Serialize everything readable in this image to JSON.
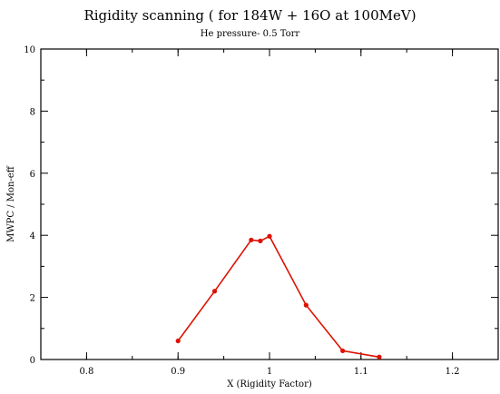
{
  "chart_data": {
    "type": "line",
    "title": "Rigidity scanning ( for 184W + 16O at 100MeV)",
    "subtitle": "He pressure- 0.5 Torr",
    "xlabel": "X (Rigidity Factor)",
    "ylabel": "MWPC / Mon-eff",
    "xlim": [
      0.75,
      1.25
    ],
    "ylim": [
      0,
      10
    ],
    "xticks": [
      0.8,
      0.9,
      1,
      1.1,
      1.2
    ],
    "xtick_labels": [
      "0.8",
      "0.9",
      "1",
      "1.1",
      "1.2"
    ],
    "yticks": [
      0,
      2,
      4,
      6,
      8,
      10
    ],
    "ytick_labels": [
      "0",
      "2",
      "4",
      "6",
      "8",
      "10"
    ],
    "grid": false,
    "series": [
      {
        "x": [
          0.9,
          0.94,
          0.98,
          0.99,
          1.0,
          1.04,
          1.08,
          1.12
        ],
        "y": [
          0.6,
          2.2,
          3.85,
          3.82,
          3.97,
          1.75,
          0.28,
          0.08
        ],
        "color": "#dd1100"
      }
    ]
  }
}
